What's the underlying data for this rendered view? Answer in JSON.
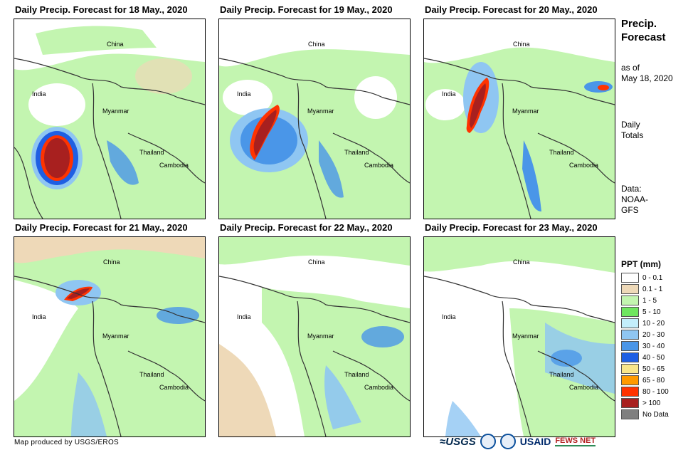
{
  "panels": [
    {
      "title": "Daily Precip. Forecast for 18 May., 2020"
    },
    {
      "title": "Daily Precip. Forecast for 19 May., 2020"
    },
    {
      "title": "Daily Precip. Forecast for 20 May., 2020"
    },
    {
      "title": "Daily Precip. Forecast for 21 May., 2020"
    },
    {
      "title": "Daily Precip. Forecast for 22 May., 2020"
    },
    {
      "title": "Daily Precip. Forecast for 23 May., 2020"
    }
  ],
  "places": {
    "china": "China",
    "india": "India",
    "myanmar": "Myanmar",
    "thailand": "Thailand",
    "cambodia": "Cambodia"
  },
  "side": {
    "title_line1": "Precip.",
    "title_line2": "Forecast",
    "asof_line1": "as of",
    "asof_line2": "May 18, 2020",
    "daily_line1": "Daily",
    "daily_line2": "Totals",
    "data_line1": "Data:",
    "data_line2": "NOAA-",
    "data_line3": "GFS"
  },
  "legend": {
    "title": "PPT (mm)",
    "items": [
      {
        "label": "0 - 0.1",
        "color": "#ffffff"
      },
      {
        "label": "0.1 - 1",
        "color": "#eed9b8"
      },
      {
        "label": "1 - 5",
        "color": "#c3f5b0"
      },
      {
        "label": "5 - 10",
        "color": "#6fe65f"
      },
      {
        "label": "10 - 20",
        "color": "#c3eefb"
      },
      {
        "label": "20 - 30",
        "color": "#8fc6f2"
      },
      {
        "label": "30 - 40",
        "color": "#4a96e8"
      },
      {
        "label": "40 - 50",
        "color": "#1f5fe3"
      },
      {
        "label": "50 - 65",
        "color": "#f9e68a"
      },
      {
        "label": "65 - 80",
        "color": "#ff9a00"
      },
      {
        "label": "80 - 100",
        "color": "#ff3300"
      },
      {
        "label": "> 100",
        "color": "#a8201f"
      },
      {
        "label": "No Data",
        "color": "#7f7f7f"
      }
    ]
  },
  "credit": "Map produced by USGS/EROS",
  "logos": {
    "usgs": "≈USGS",
    "usaid": "USAID",
    "fews": "FEWS NET"
  }
}
